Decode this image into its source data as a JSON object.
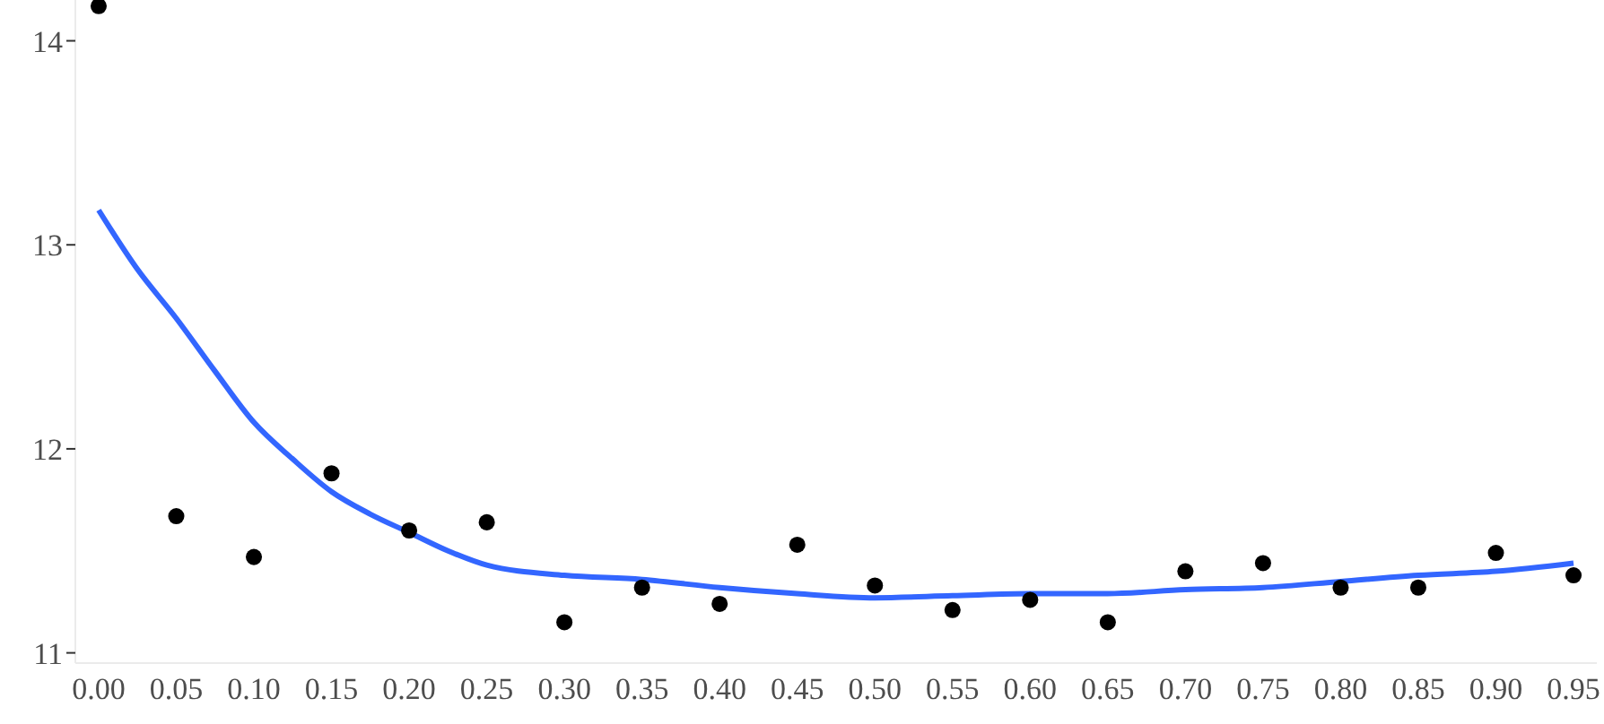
{
  "chart_data": {
    "type": "scatter",
    "xlim": [
      -0.015,
      0.965
    ],
    "ylim": [
      10.95,
      14.2
    ],
    "xticks": [
      {
        "value": 0,
        "label": "0.00"
      },
      {
        "value": 0.05,
        "label": "0.05"
      },
      {
        "value": 0.1,
        "label": "0.10"
      },
      {
        "value": 0.15,
        "label": "0.15"
      },
      {
        "value": 0.2,
        "label": "0.20"
      },
      {
        "value": 0.25,
        "label": "0.25"
      },
      {
        "value": 0.3,
        "label": "0.30"
      },
      {
        "value": 0.35,
        "label": "0.35"
      },
      {
        "value": 0.4,
        "label": "0.40"
      },
      {
        "value": 0.45,
        "label": "0.45"
      },
      {
        "value": 0.5,
        "label": "0.50"
      },
      {
        "value": 0.55,
        "label": "0.55"
      },
      {
        "value": 0.6,
        "label": "0.60"
      },
      {
        "value": 0.65,
        "label": "0.65"
      },
      {
        "value": 0.7,
        "label": "0.70"
      },
      {
        "value": 0.75,
        "label": "0.75"
      },
      {
        "value": 0.8,
        "label": "0.80"
      },
      {
        "value": 0.85,
        "label": "0.85"
      },
      {
        "value": 0.9,
        "label": "0.90"
      },
      {
        "value": 0.95,
        "label": "0.95"
      }
    ],
    "yticks": [
      11,
      12,
      13,
      14
    ],
    "grid": false,
    "legend": false,
    "marker": "circle",
    "series": [
      {
        "color": "#000000",
        "x": [
          0,
          0.05,
          0.1,
          0.15,
          0.2,
          0.25,
          0.3,
          0.35,
          0.4,
          0.45,
          0.5,
          0.55,
          0.6,
          0.65,
          0.7,
          0.75,
          0.8,
          0.85,
          0.9,
          0.95
        ],
        "values": [
          14.17,
          11.67,
          11.47,
          11.88,
          11.6,
          11.64,
          11.15,
          11.32,
          11.24,
          11.53,
          11.33,
          11.21,
          11.26,
          11.15,
          11.4,
          11.44,
          11.32,
          11.32,
          11.49,
          11.38
        ]
      },
      {
        "type": "line",
        "color": "#3366ff",
        "marker": "none",
        "x": [
          0,
          0.025,
          0.05,
          0.075,
          0.1,
          0.125,
          0.15,
          0.175,
          0.2,
          0.225,
          0.25,
          0.3,
          0.35,
          0.4,
          0.45,
          0.5,
          0.55,
          0.6,
          0.65,
          0.7,
          0.75,
          0.8,
          0.85,
          0.9,
          0.95
        ],
        "values": [
          13.17,
          12.88,
          12.64,
          12.38,
          12.13,
          11.95,
          11.79,
          11.68,
          11.59,
          11.5,
          11.43,
          11.38,
          11.36,
          11.32,
          11.29,
          11.27,
          11.28,
          11.29,
          11.29,
          11.31,
          11.32,
          11.35,
          11.38,
          11.4,
          11.44
        ]
      }
    ]
  }
}
